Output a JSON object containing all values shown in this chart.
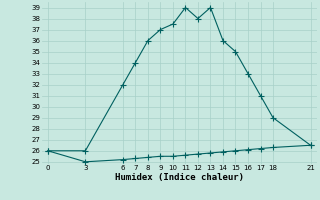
{
  "xlabel": "Humidex (Indice chaleur)",
  "bg_color": "#c8e8e0",
  "grid_color": "#a8d0c8",
  "line_color": "#006060",
  "line1_x": [
    0,
    3,
    6,
    7,
    8,
    9,
    10,
    11,
    12,
    13,
    14,
    15,
    16,
    17,
    18,
    21
  ],
  "line1_y": [
    26,
    26,
    32,
    34,
    36,
    37,
    37.5,
    39,
    38,
    39,
    36,
    35,
    33,
    31,
    29,
    26.5
  ],
  "line2_x": [
    0,
    3,
    6,
    7,
    8,
    9,
    10,
    11,
    12,
    13,
    14,
    15,
    16,
    17,
    18,
    21
  ],
  "line2_y": [
    26,
    25,
    25.2,
    25.3,
    25.4,
    25.5,
    25.5,
    25.6,
    25.7,
    25.8,
    25.9,
    26.0,
    26.1,
    26.2,
    26.3,
    26.5
  ],
  "xlim": [
    -0.5,
    21.5
  ],
  "ylim": [
    24.8,
    39.5
  ],
  "xticks": [
    0,
    3,
    6,
    7,
    8,
    9,
    10,
    11,
    12,
    13,
    14,
    15,
    16,
    17,
    18,
    21
  ],
  "yticks": [
    25,
    26,
    27,
    28,
    29,
    30,
    31,
    32,
    33,
    34,
    35,
    36,
    37,
    38,
    39
  ],
  "marker": "+",
  "markersize": 4,
  "linewidth": 0.8,
  "tick_fontsize": 5,
  "xlabel_fontsize": 6.5
}
